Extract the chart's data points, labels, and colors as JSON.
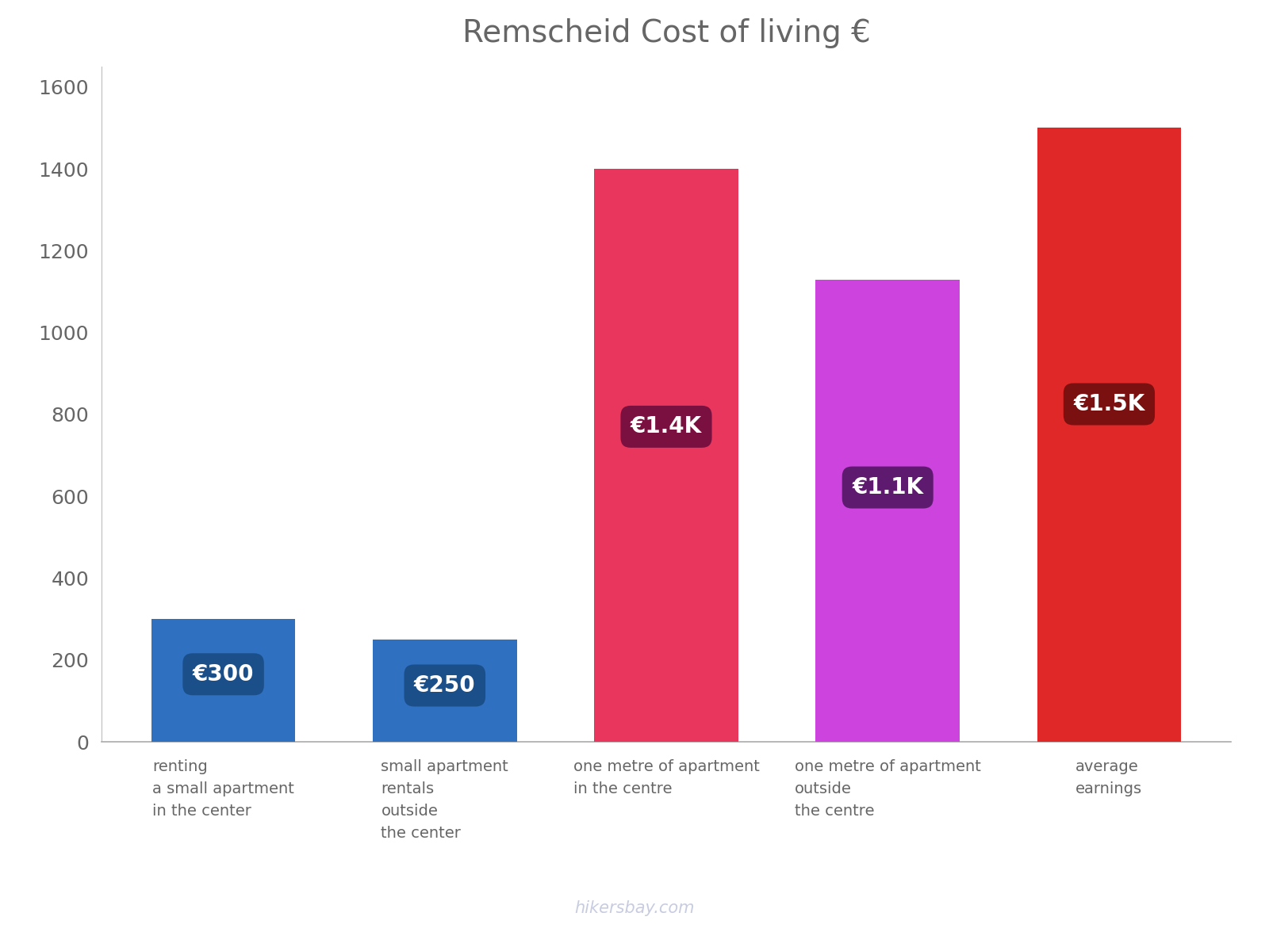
{
  "title": "Remscheid Cost of living €",
  "categories": [
    "renting\na small apartment\nin the center",
    "small apartment\nrentals\noutside\nthe center",
    "one metre of apartment\nin the centre",
    "one metre of apartment\noutside\nthe centre",
    "average\nearnings"
  ],
  "values": [
    300,
    250,
    1400,
    1130,
    1500
  ],
  "bar_colors": [
    "#3070c0",
    "#3070c0",
    "#e8365d",
    "#cc44dd",
    "#e02828"
  ],
  "label_texts": [
    "€300",
    "€250",
    "€1.4K",
    "€1.1K",
    "€1.5K"
  ],
  "label_bg_colors": [
    "#1a4f8a",
    "#1a4f8a",
    "#7a1040",
    "#5e1a6e",
    "#7a1010"
  ],
  "ylim": [
    0,
    1650
  ],
  "yticks": [
    0,
    200,
    400,
    600,
    800,
    1000,
    1200,
    1400,
    1600
  ],
  "title_fontsize": 28,
  "tick_fontsize": 18,
  "label_fontsize": 20,
  "xlabel_fontsize": 14,
  "watermark": "hikersbay.com",
  "watermark_color": "#c8cce0",
  "background_color": "#ffffff",
  "axis_color": "#aaaaaa",
  "text_color": "#666666"
}
